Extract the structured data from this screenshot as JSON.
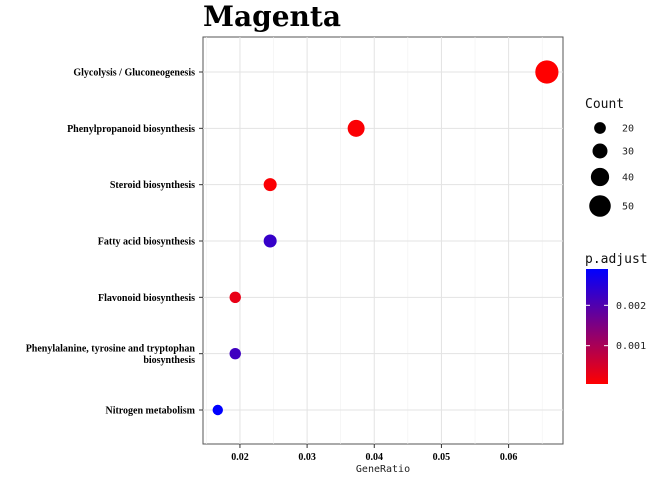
{
  "chart_data": {
    "type": "scatter",
    "title": "Magenta",
    "xlabel": "GeneRatio",
    "ylabel": "",
    "xlim": [
      0.0145,
      0.0681
    ],
    "x_ticks": [
      0.02,
      0.03,
      0.04,
      0.05,
      0.06
    ],
    "x_tick_labels": [
      "0.02",
      "0.03",
      "0.04",
      "0.05",
      "0.06"
    ],
    "categories": [
      "Glycolysis / Gluconeogenesis",
      "Phenylpropanoid biosynthesis",
      "Steroid biosynthesis",
      "Fatty acid biosynthesis",
      "Flavonoid biosynthesis",
      "Phenylalanine, tyrosine and tryptophan biosynthesis",
      "Nitrogen metabolism"
    ],
    "category_label_lines": [
      [
        "Glycolysis / Gluconeogenesis"
      ],
      [
        "Phenylpropanoid biosynthesis"
      ],
      [
        "Steroid biosynthesis"
      ],
      [
        "Fatty acid biosynthesis"
      ],
      [
        "Flavonoid biosynthesis"
      ],
      [
        "Phenylalanine, tyrosine and tryptophan",
        "biosynthesis"
      ],
      [
        "Nitrogen metabolism"
      ]
    ],
    "points": [
      {
        "category": "Glycolysis / Gluconeogenesis",
        "x": 0.0657,
        "count": 55,
        "p_adjust": 5e-05
      },
      {
        "category": "Phenylpropanoid biosynthesis",
        "x": 0.0373,
        "count": 36,
        "p_adjust": 0.0001
      },
      {
        "category": "Steroid biosynthesis",
        "x": 0.0245,
        "count": 24,
        "p_adjust": 0.0001
      },
      {
        "category": "Fatty acid biosynthesis",
        "x": 0.0245,
        "count": 24,
        "p_adjust": 0.0023
      },
      {
        "category": "Flavonoid biosynthesis",
        "x": 0.0193,
        "count": 19,
        "p_adjust": 0.0003
      },
      {
        "category": "Phenylalanine, tyrosine and tryptophan biosynthesis",
        "x": 0.0193,
        "count": 19,
        "p_adjust": 0.0022
      },
      {
        "category": "Nitrogen metabolism",
        "x": 0.0167,
        "count": 16,
        "p_adjust": 0.0029
      }
    ],
    "legend_size": {
      "title": "Count",
      "values": [
        20,
        30,
        40,
        50
      ],
      "labels": [
        "20",
        "30",
        "40",
        "50"
      ]
    },
    "legend_color": {
      "title": "p.adjust",
      "range": [
        5e-05,
        0.0029
      ],
      "ticks": [
        0.001,
        0.002
      ],
      "tick_labels": [
        "0.001",
        "0.002"
      ],
      "low_color": "#ff0000",
      "high_color": "#0000ff"
    },
    "grid": true,
    "legend_position": "right"
  }
}
